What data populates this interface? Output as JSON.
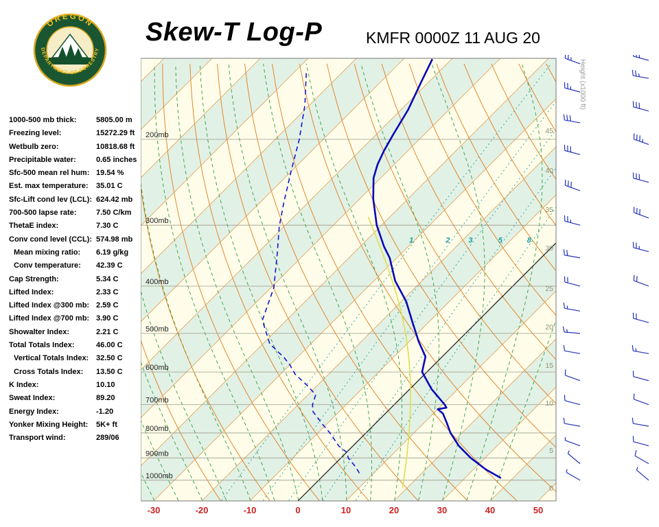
{
  "header": {
    "title": "Skew-T Log-P",
    "station": "KMFR 0000Z 11 AUG 20",
    "logo": {
      "line1": "OREGON",
      "line2": "DEPARTMENT OF FORESTRY"
    }
  },
  "indices": {
    "rows": [
      {
        "label": "1000-500 mb thick:",
        "value": "5805.00 m"
      },
      {
        "label": "Freezing level:",
        "value": "15272.29 ft"
      },
      {
        "label": "Wetbulb zero:",
        "value": "10818.68 ft"
      },
      {
        "label": "Precipitable water:",
        "value": "0.65 inches"
      },
      {
        "label": "Sfc-500 mean rel hum:",
        "value": "19.54 %"
      },
      {
        "label": "Est. max temperature:",
        "value": "35.01 C"
      },
      {
        "label": "Sfc-Lift cond lev (LCL):",
        "value": "624.42 mb"
      },
      {
        "label": "700-500 lapse rate:",
        "value": "7.50 C/km"
      },
      {
        "label": "ThetaE index:",
        "value": "7.30 C"
      },
      {
        "label": "Conv cond level (CCL):",
        "value": "574.98 mb"
      },
      {
        "label": "Mean mixing ratio:",
        "value": "6.19 g/kg",
        "indent": true
      },
      {
        "label": "Conv temperature:",
        "value": "42.39 C",
        "indent": true
      },
      {
        "label": "Cap Strength:",
        "value": "5.34 C"
      },
      {
        "label": "Lifted Index:",
        "value": "2.33 C"
      },
      {
        "label": "Lifted Index @300 mb:",
        "value": "2.59 C"
      },
      {
        "label": "Lifted Index @700 mb:",
        "value": "3.90 C"
      },
      {
        "label": "Showalter Index:",
        "value": "2.21 C"
      },
      {
        "label": "Total Totals Index:",
        "value": "46.00 C"
      },
      {
        "label": "Vertical Totals Index:",
        "value": "32.50 C",
        "indent": true
      },
      {
        "label": "Cross Totals Index:",
        "value": "13.50 C",
        "indent": true
      },
      {
        "label": "K Index:",
        "value": "10.10"
      },
      {
        "label": "Sweat Index:",
        "value": "89.20"
      },
      {
        "label": "Energy Index:",
        "value": "-1.20"
      },
      {
        "label": "Yonker Mixing Height:",
        "value": "5K+ ft"
      },
      {
        "label": "Transport wind:",
        "value": "289/06"
      }
    ]
  },
  "chart_data": {
    "type": "skewt-log-p",
    "title": "Skew-T Log-P sounding for KMFR 0000Z 11 AUG 20",
    "pressure_labels": [
      "200mb",
      "300mb",
      "400mb",
      "500mb",
      "600mb",
      "700mb",
      "800mb",
      "900mb",
      "1000mb"
    ],
    "pressure_levels": [
      200,
      300,
      400,
      500,
      600,
      700,
      800,
      900,
      1000
    ],
    "temp_axis": {
      "ticks": [
        -30,
        -20,
        -10,
        0,
        10,
        20,
        30,
        40,
        50
      ],
      "unit": "C"
    },
    "height_axis": {
      "label": "Height (x1000 ft)",
      "ticks": [
        [
          45,
          110
        ],
        [
          40,
          168
        ],
        [
          35,
          225
        ],
        [
          30,
          281
        ],
        [
          25,
          340
        ],
        [
          20,
          396
        ],
        [
          15,
          452
        ],
        [
          10,
          507
        ],
        [
          5,
          576
        ],
        [
          0,
          631
        ]
      ]
    },
    "mixing_ratio_values": [
      1,
      2,
      3,
      5,
      8
    ],
    "isotherm_step": 10,
    "dry_adiabat_theta": [
      250,
      460,
      10
    ],
    "moist_adiabat_start": [
      -40,
      40,
      5
    ],
    "temperature_profile": [
      [
        990,
        37.5
      ],
      [
        950,
        32.5
      ],
      [
        900,
        27
      ],
      [
        850,
        22
      ],
      [
        800,
        17.6
      ],
      [
        760,
        14.5
      ],
      [
        730,
        12
      ],
      [
        715,
        10
      ],
      [
        710,
        11.5
      ],
      [
        700,
        10.5
      ],
      [
        650,
        4.5
      ],
      [
        600,
        -1
      ],
      [
        558,
        -3.5
      ],
      [
        520,
        -8
      ],
      [
        474,
        -13.4
      ],
      [
        430,
        -19
      ],
      [
        390,
        -25.6
      ],
      [
        350,
        -31.5
      ],
      [
        332,
        -35
      ],
      [
        300,
        -41
      ],
      [
        265,
        -47.2
      ],
      [
        240,
        -51.5
      ],
      [
        225,
        -53.5
      ],
      [
        211,
        -55
      ],
      [
        195,
        -56.5
      ],
      [
        174,
        -58.5
      ],
      [
        153,
        -61.5
      ],
      [
        137,
        -64
      ]
    ],
    "dewpoint_profile": [
      [
        967,
        7
      ],
      [
        940,
        5
      ],
      [
        900,
        1.5
      ],
      [
        879,
        0.3
      ],
      [
        850,
        -3
      ],
      [
        800,
        -7.5
      ],
      [
        771,
        -10.5
      ],
      [
        723,
        -15.5
      ],
      [
        700,
        -17
      ],
      [
        668,
        -18.4
      ],
      [
        640,
        -22
      ],
      [
        606,
        -27
      ],
      [
        580,
        -30
      ],
      [
        560,
        -32.8
      ],
      [
        525,
        -38.6
      ],
      [
        470,
        -45
      ],
      [
        403,
        -49.4
      ],
      [
        343,
        -55.8
      ],
      [
        302,
        -61
      ],
      [
        270,
        -65
      ],
      [
        233,
        -70
      ],
      [
        200,
        -75
      ],
      [
        170,
        -81
      ],
      [
        144,
        -88
      ]
    ],
    "parcel": {
      "lcl_pressure": 624.42,
      "lcl_temp": -1.7,
      "top_pressure": 285,
      "bottom_pressure": 1040
    },
    "winds_primary": [
      [
        1000,
        300,
        5
      ],
      [
        925,
        310,
        7
      ],
      [
        850,
        290,
        7
      ],
      [
        775,
        280,
        8
      ],
      [
        700,
        285,
        10
      ],
      [
        625,
        290,
        10
      ],
      [
        550,
        280,
        12
      ],
      [
        500,
        275,
        15
      ],
      [
        450,
        280,
        15
      ],
      [
        400,
        285,
        20
      ],
      [
        350,
        280,
        20
      ],
      [
        300,
        285,
        25
      ],
      [
        255,
        290,
        28
      ],
      [
        215,
        285,
        32
      ],
      [
        185,
        280,
        30
      ],
      [
        160,
        285,
        27
      ],
      [
        140,
        290,
        25
      ]
    ],
    "winds_secondary": [
      [
        1000,
        310,
        6
      ],
      [
        925,
        300,
        8
      ],
      [
        850,
        285,
        8
      ],
      [
        775,
        280,
        10
      ],
      [
        700,
        290,
        12
      ],
      [
        625,
        285,
        12
      ],
      [
        550,
        280,
        15
      ],
      [
        475,
        285,
        18
      ],
      [
        400,
        290,
        22
      ],
      [
        340,
        285,
        25
      ],
      [
        290,
        290,
        28
      ],
      [
        245,
        285,
        32
      ],
      [
        205,
        290,
        35
      ],
      [
        175,
        285,
        30
      ],
      [
        150,
        280,
        27
      ],
      [
        136,
        285,
        25
      ]
    ],
    "colors": {
      "background": "#FFFDEA",
      "band": "#E2F1E5",
      "isotherm": "#E2A05A",
      "zero_isotherm": "#1a1a1a",
      "dry_adiabat": "#E07B1A",
      "moist_adiabat": "#2E9E40",
      "mixing_ratio": "#18A0A0",
      "pressure_line": "#9A9A8A",
      "pressure_text": "#222222",
      "height_text": "#8F9277",
      "axis_red": "#CC2020",
      "temperature": "#0808B8",
      "dewpoint": "#1515CC",
      "parcel": "#DFDF4E",
      "barb": "#2233BB",
      "border": "#777777"
    }
  }
}
